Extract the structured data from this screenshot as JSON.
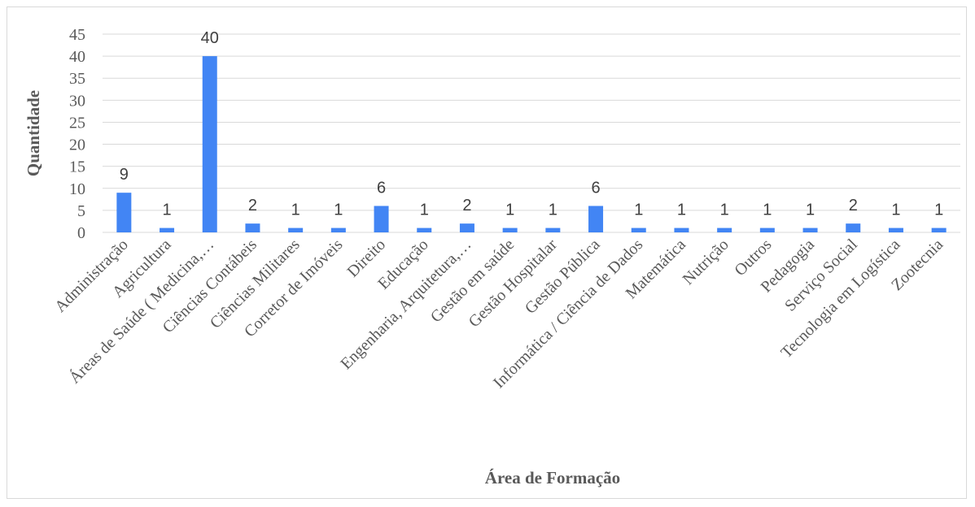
{
  "chart_data": {
    "type": "bar",
    "title": "",
    "xlabel": "Área de Formação",
    "ylabel": "Quantidade",
    "categories": [
      "Administração",
      "Agricultura",
      "Áreas de Saúde ( Medicina,…",
      "Ciências Contábeis",
      "Ciências Militares",
      "Corretor de Imóveis",
      "Direito",
      "Educação",
      "Engenharia, Arquitetura,…",
      "Gestão em saúde",
      "Gestão Hospitalar",
      "Gestão Pública",
      "Informática / Ciência de Dados",
      "Matemática",
      "Nutrição",
      "Outros",
      "Pedagogia",
      "Serviço Social",
      "Tecnologia em Logística",
      "Zootecnia"
    ],
    "values": [
      9,
      1,
      40,
      2,
      1,
      1,
      6,
      1,
      2,
      1,
      1,
      6,
      1,
      1,
      1,
      1,
      1,
      2,
      1,
      1
    ],
    "ylim": [
      0,
      45
    ],
    "yticks": [
      0,
      5,
      10,
      15,
      20,
      25,
      30,
      35,
      40,
      45
    ],
    "grid": true,
    "legend": "none",
    "bar_color": "#4285f4",
    "grid_color": "#d9d9d9",
    "data_labels": true
  }
}
